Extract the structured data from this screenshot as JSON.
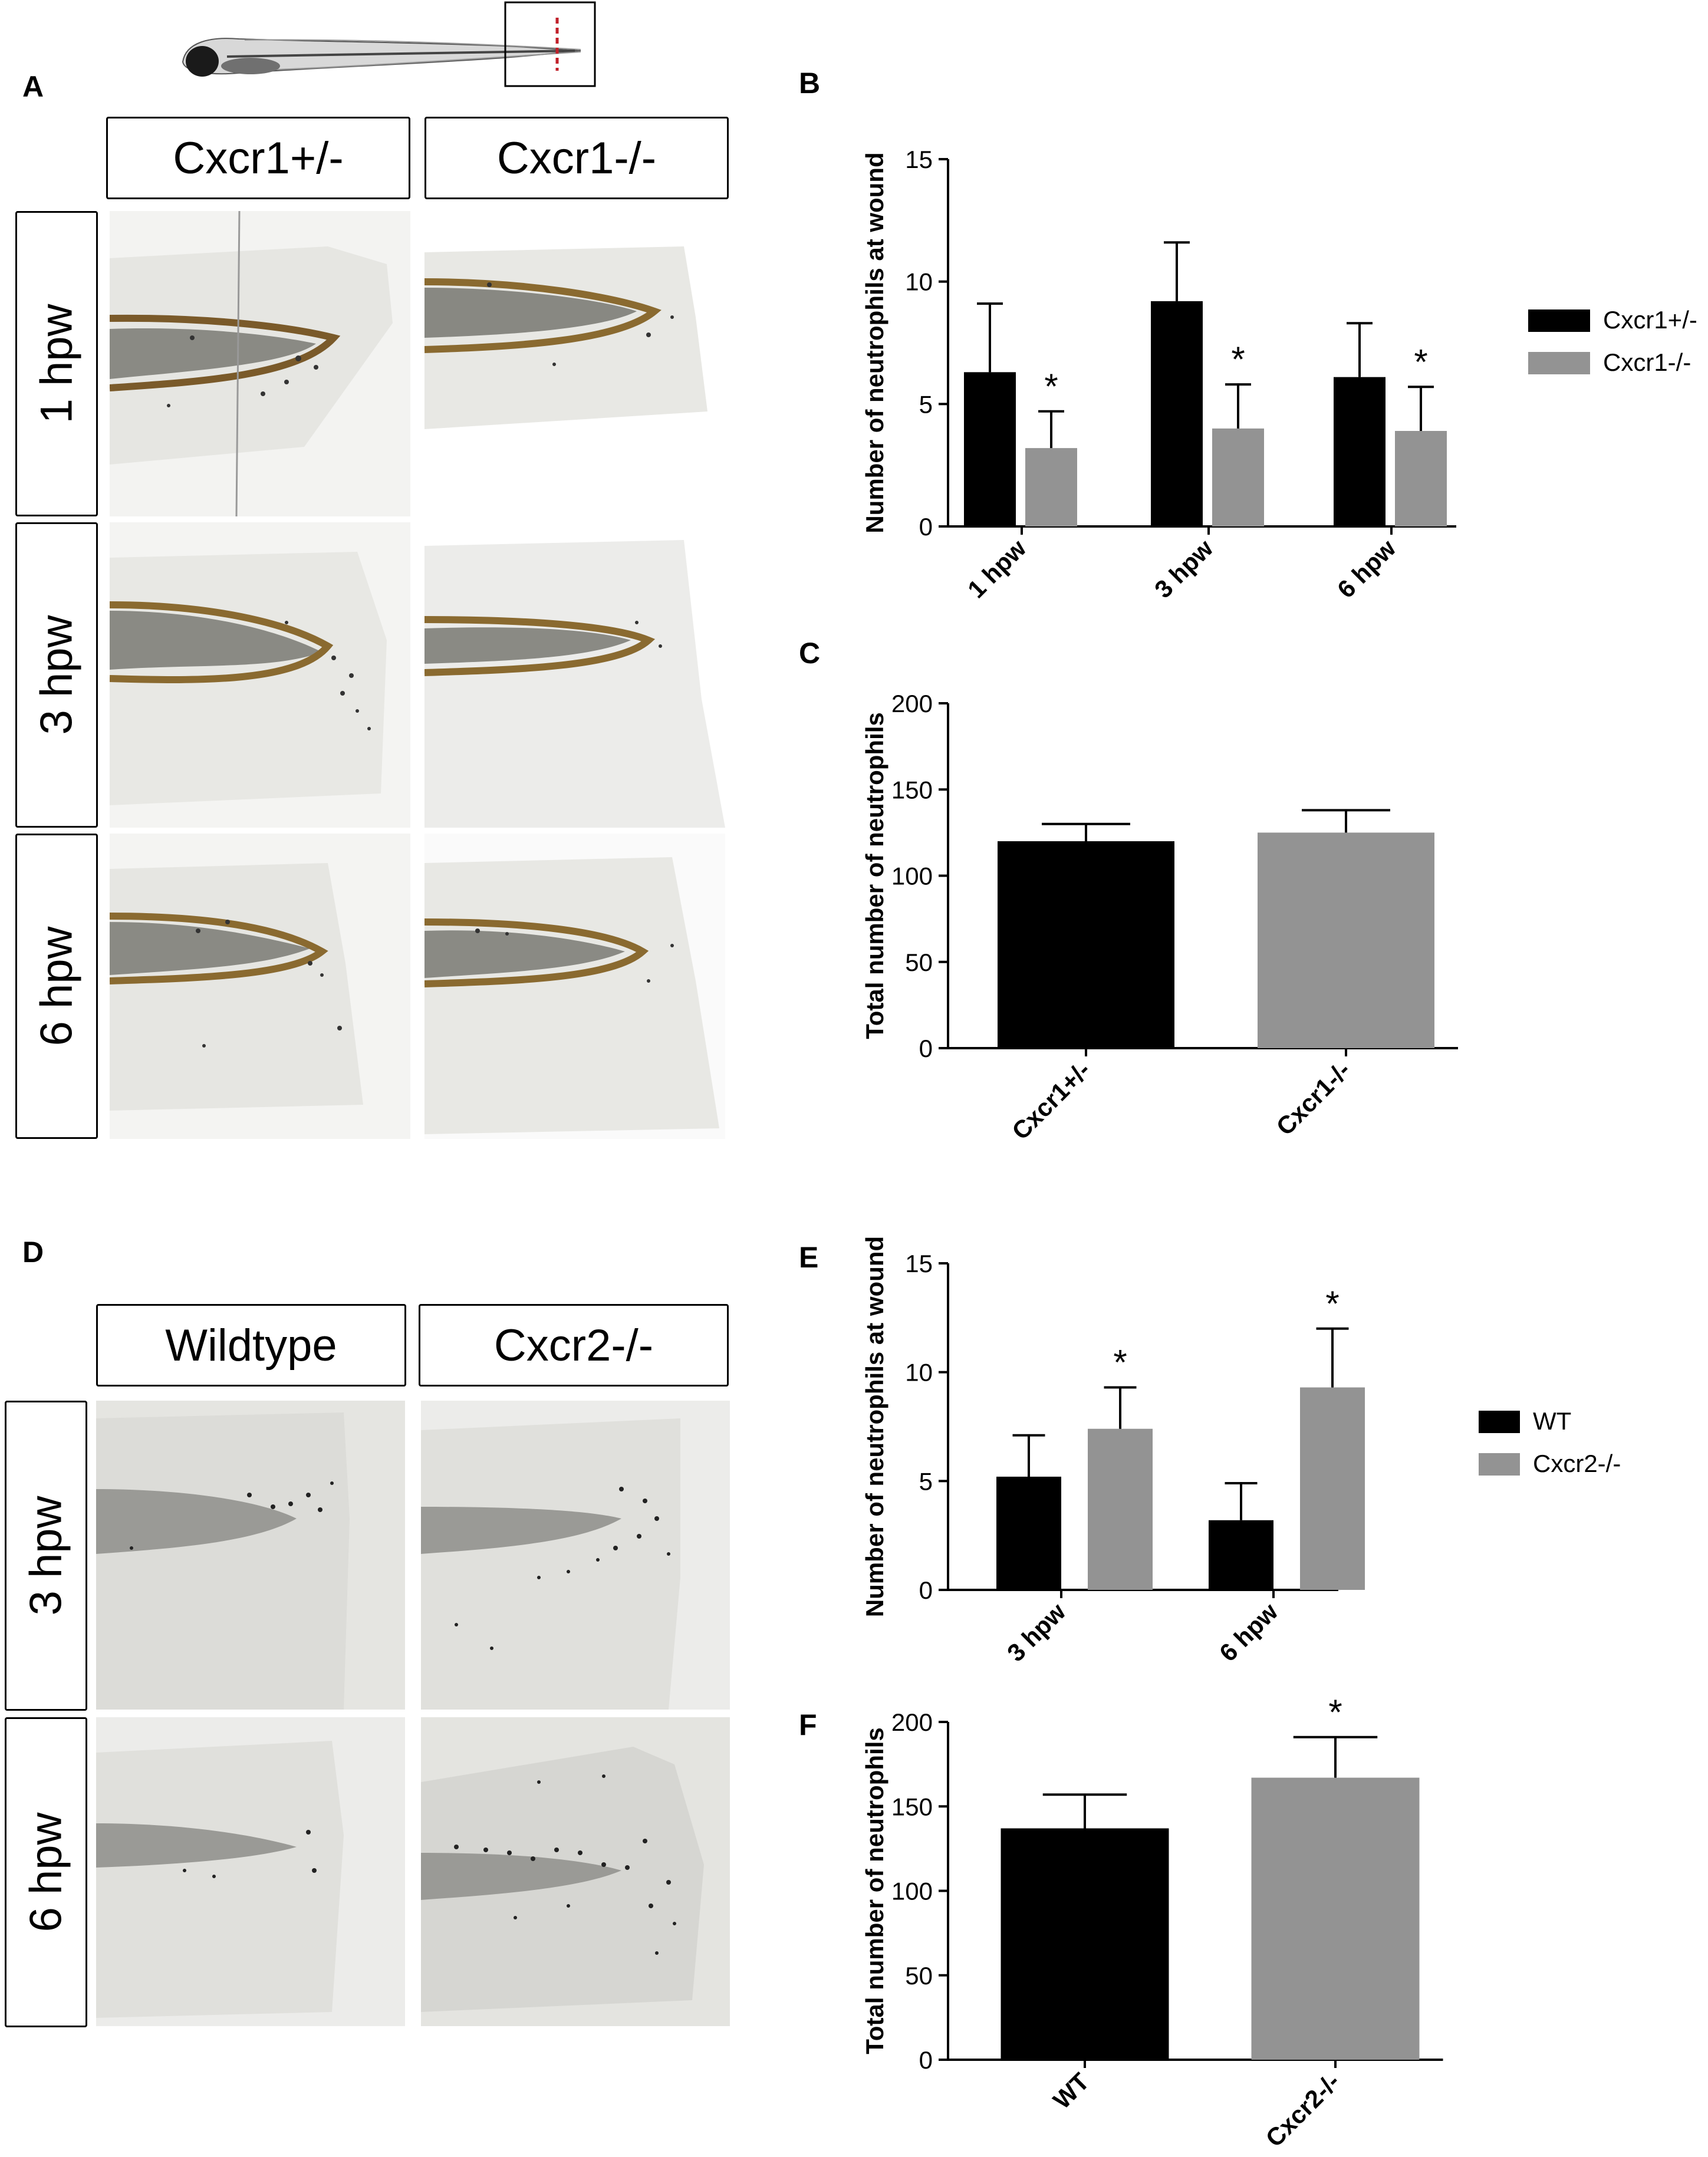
{
  "panels": {
    "A": {
      "letter": "A",
      "col_headers": [
        "Cxcr1+/-",
        "Cxcr1-/-"
      ],
      "row_headers": [
        "1 hpw",
        "3 hpw",
        "6 hpw"
      ]
    },
    "D": {
      "letter": "D",
      "col_headers": [
        "Wildtype",
        "Cxcr2-/-"
      ],
      "row_headers": [
        "3 hpw",
        "6 hpw"
      ]
    }
  },
  "chart_data": [
    {
      "panel": "B",
      "type": "bar",
      "categories": [
        "1 hpw",
        "3 hpw",
        "6 hpw"
      ],
      "series": [
        {
          "name": "Cxcr1+/-",
          "values": [
            6.3,
            9.2,
            6.1
          ],
          "errors": [
            2.8,
            2.4,
            2.2
          ],
          "color": "#000000"
        },
        {
          "name": "Cxcr1-/-",
          "values": [
            3.2,
            4.0,
            3.9
          ],
          "errors": [
            1.5,
            1.8,
            1.8
          ],
          "color": "#939393"
        }
      ],
      "significance": [
        {
          "category": "1 hpw",
          "series": 1,
          "label": "*"
        },
        {
          "category": "3 hpw",
          "series": 1,
          "label": "*"
        },
        {
          "category": "6 hpw",
          "series": 1,
          "label": "*"
        }
      ],
      "ylabel": "Number of neutrophils at wound",
      "ylim": [
        0,
        15
      ],
      "yticks": [
        0,
        5,
        10,
        15
      ],
      "legend": "right"
    },
    {
      "panel": "C",
      "type": "bar",
      "categories": [
        "Cxcr1+/-",
        "Cxcr1-/-"
      ],
      "series": [
        {
          "values": [
            120,
            125
          ],
          "errors": [
            10,
            13
          ],
          "colors": [
            "#000000",
            "#939393"
          ]
        }
      ],
      "significance": [],
      "ylabel": "Total number of neutrophils",
      "ylim": [
        0,
        200
      ],
      "yticks": [
        0,
        50,
        100,
        150,
        200
      ]
    },
    {
      "panel": "E",
      "type": "bar",
      "categories": [
        "3 hpw",
        "6 hpw"
      ],
      "series": [
        {
          "name": "WT",
          "values": [
            5.2,
            3.2
          ],
          "errors": [
            1.9,
            1.7
          ],
          "color": "#000000"
        },
        {
          "name": "Cxcr2-/-",
          "values": [
            7.4,
            9.3
          ],
          "errors": [
            1.9,
            2.7
          ],
          "color": "#939393"
        }
      ],
      "significance": [
        {
          "category": "3 hpw",
          "series": 1,
          "label": "*"
        },
        {
          "category": "6 hpw",
          "series": 1,
          "label": "*"
        }
      ],
      "ylabel": "Number of neutrophils at wound",
      "ylim": [
        0,
        15
      ],
      "yticks": [
        0,
        5,
        10,
        15
      ],
      "legend": "right"
    },
    {
      "panel": "F",
      "type": "bar",
      "categories": [
        "WT",
        "Cxcr2-/-"
      ],
      "series": [
        {
          "values": [
            137,
            167
          ],
          "errors": [
            20,
            24
          ],
          "colors": [
            "#000000",
            "#939393"
          ]
        }
      ],
      "significance": [
        {
          "category": "Cxcr2-/-",
          "series": 0,
          "label": "*"
        }
      ],
      "ylabel": "Total number of neutrophils",
      "ylim": [
        0,
        200
      ],
      "yticks": [
        0,
        50,
        100,
        150,
        200
      ]
    }
  ]
}
